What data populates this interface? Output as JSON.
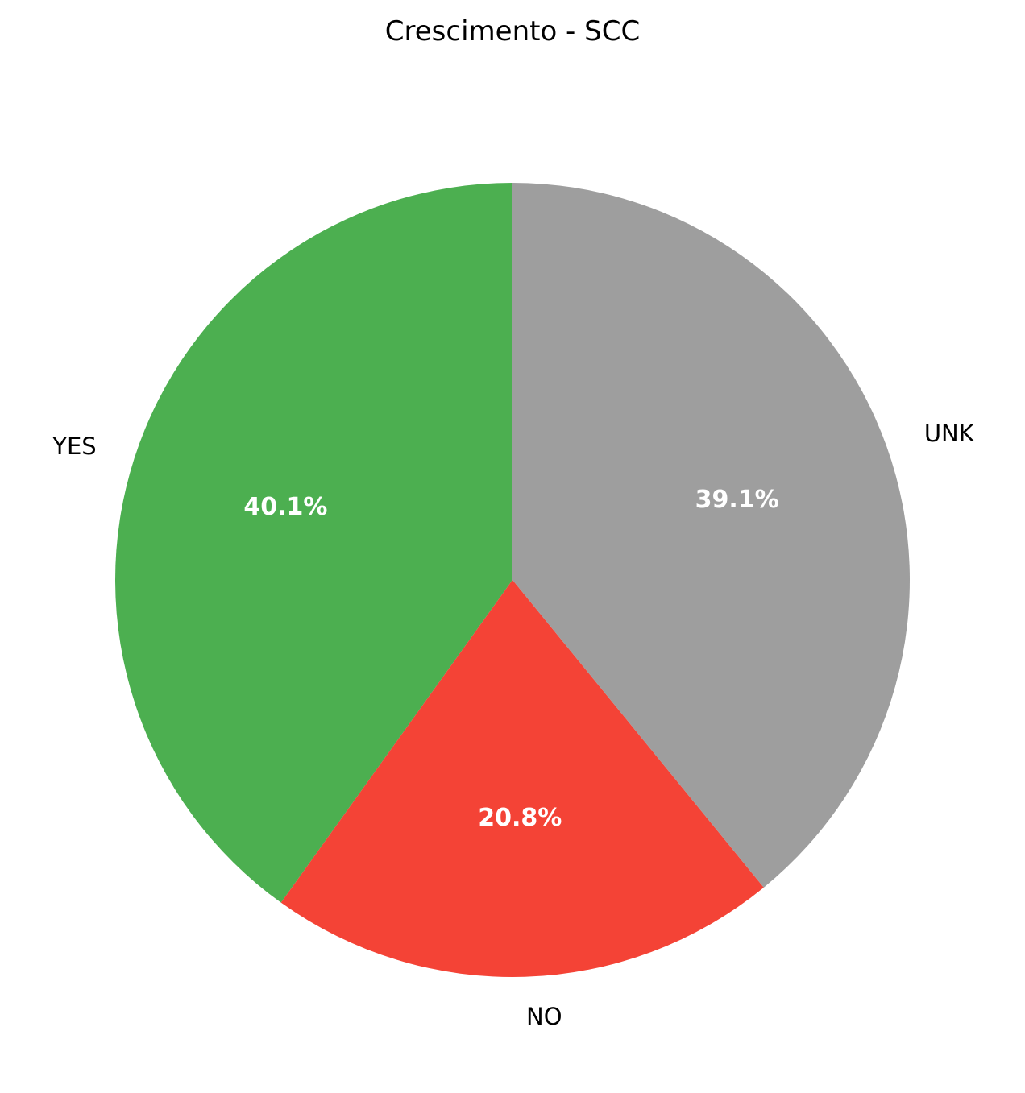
{
  "chart_data": {
    "type": "pie",
    "title": "Crescimento - SCC",
    "start_angle_deg": 90,
    "direction": "counterclockwise",
    "slices": [
      {
        "label": "YES",
        "value": 40.1,
        "pct_label": "40.1%",
        "color": "#4caf50"
      },
      {
        "label": "NO",
        "value": 20.8,
        "pct_label": "20.8%",
        "color": "#f44336"
      },
      {
        "label": "UNK",
        "value": 39.1,
        "pct_label": "39.1%",
        "color": "#9e9e9e"
      }
    ]
  }
}
